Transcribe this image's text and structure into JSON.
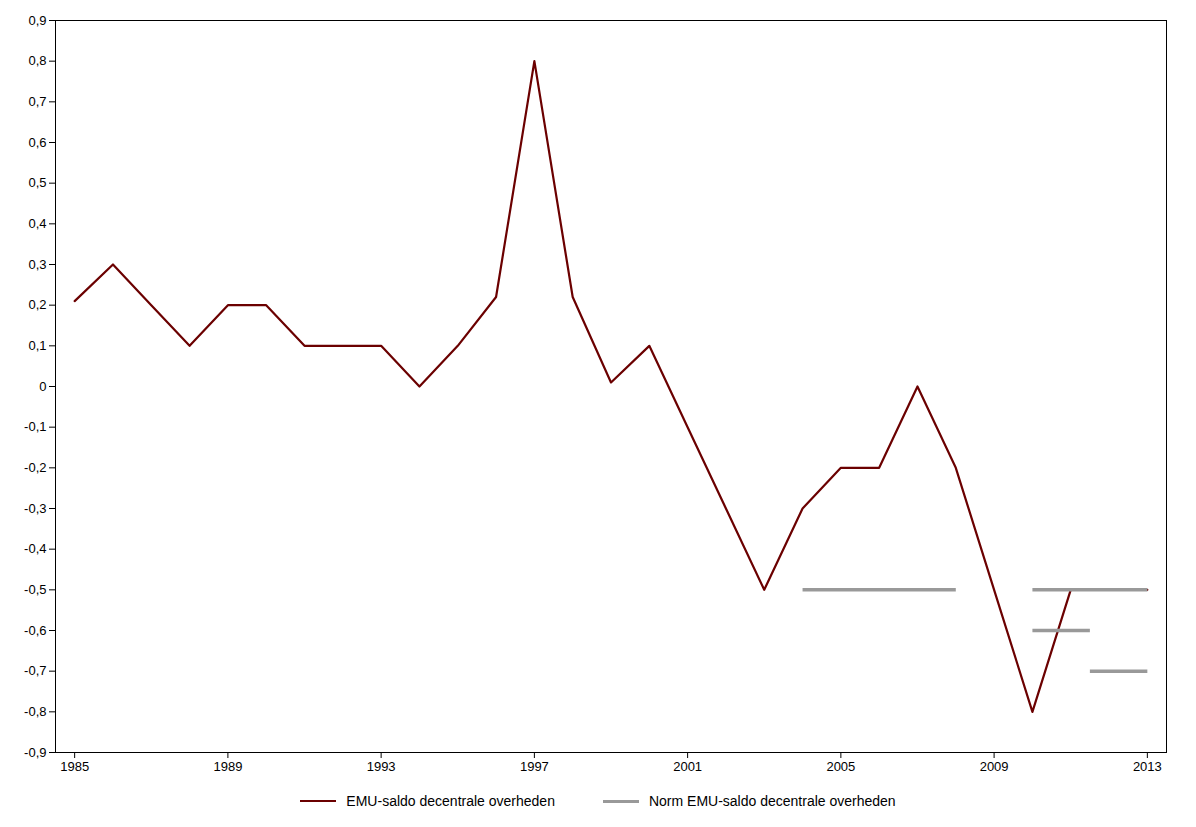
{
  "chart_data": {
    "type": "line",
    "x": [
      1985,
      1986,
      1987,
      1988,
      1989,
      1990,
      1991,
      1992,
      1993,
      1994,
      1995,
      1996,
      1997,
      1998,
      1999,
      2000,
      2001,
      2002,
      2003,
      2004,
      2005,
      2006,
      2007,
      2008,
      2009,
      2010,
      2011,
      2012,
      2013
    ],
    "series": [
      {
        "name": "EMU-saldo decentrale overheden",
        "type": "line",
        "color": "#6B0000",
        "values": [
          0.21,
          0.3,
          0.2,
          0.1,
          0.2,
          0.2,
          0.1,
          0.1,
          0.1,
          0.0,
          0.1,
          0.22,
          0.8,
          0.22,
          0.01,
          0.1,
          -0.1,
          -0.3,
          -0.5,
          -0.3,
          -0.2,
          -0.2,
          0.0,
          -0.2,
          -0.5,
          -0.8,
          -0.5,
          -0.5,
          -0.5
        ]
      },
      {
        "name": "Norm EMU-saldo decentrale overheden",
        "type": "segment",
        "color": "#999999",
        "segments": [
          {
            "x_start": 2004,
            "x_end": 2008,
            "y": -0.5
          },
          {
            "x_start": 2010,
            "x_end": 2013,
            "y": -0.5
          },
          {
            "x_start": 2010,
            "x_end": 2011.5,
            "y": -0.6
          },
          {
            "x_start": 2011.5,
            "x_end": 2013,
            "y": -0.7
          }
        ]
      }
    ],
    "xlim": [
      1984.5,
      2013.5
    ],
    "xticks": [
      1985,
      1989,
      1993,
      1997,
      2001,
      2005,
      2009,
      2013
    ],
    "ylim": [
      -0.9,
      0.9
    ],
    "yticks": [
      {
        "value": -0.9,
        "label": "-0,9"
      },
      {
        "value": -0.8,
        "label": "-0,8"
      },
      {
        "value": -0.7,
        "label": "-0,7"
      },
      {
        "value": -0.6,
        "label": "-0,6"
      },
      {
        "value": -0.5,
        "label": "-0,5"
      },
      {
        "value": -0.4,
        "label": "-0,4"
      },
      {
        "value": -0.3,
        "label": "-0,3"
      },
      {
        "value": -0.2,
        "label": "-0,2"
      },
      {
        "value": -0.1,
        "label": "-0,1"
      },
      0,
      {
        "value": 0.1,
        "label": "0,1"
      },
      {
        "value": 0.2,
        "label": "0,2"
      },
      {
        "value": 0.3,
        "label": "0,3"
      },
      {
        "value": 0.4,
        "label": "0,4"
      },
      {
        "value": 0.5,
        "label": "0,5"
      },
      {
        "value": 0.6,
        "label": "0,6"
      },
      {
        "value": 0.7,
        "label": "0,7"
      },
      {
        "value": 0.8,
        "label": "0,8"
      },
      {
        "value": 0.9,
        "label": "0,9"
      }
    ],
    "grid": false,
    "legend": "bottom"
  }
}
